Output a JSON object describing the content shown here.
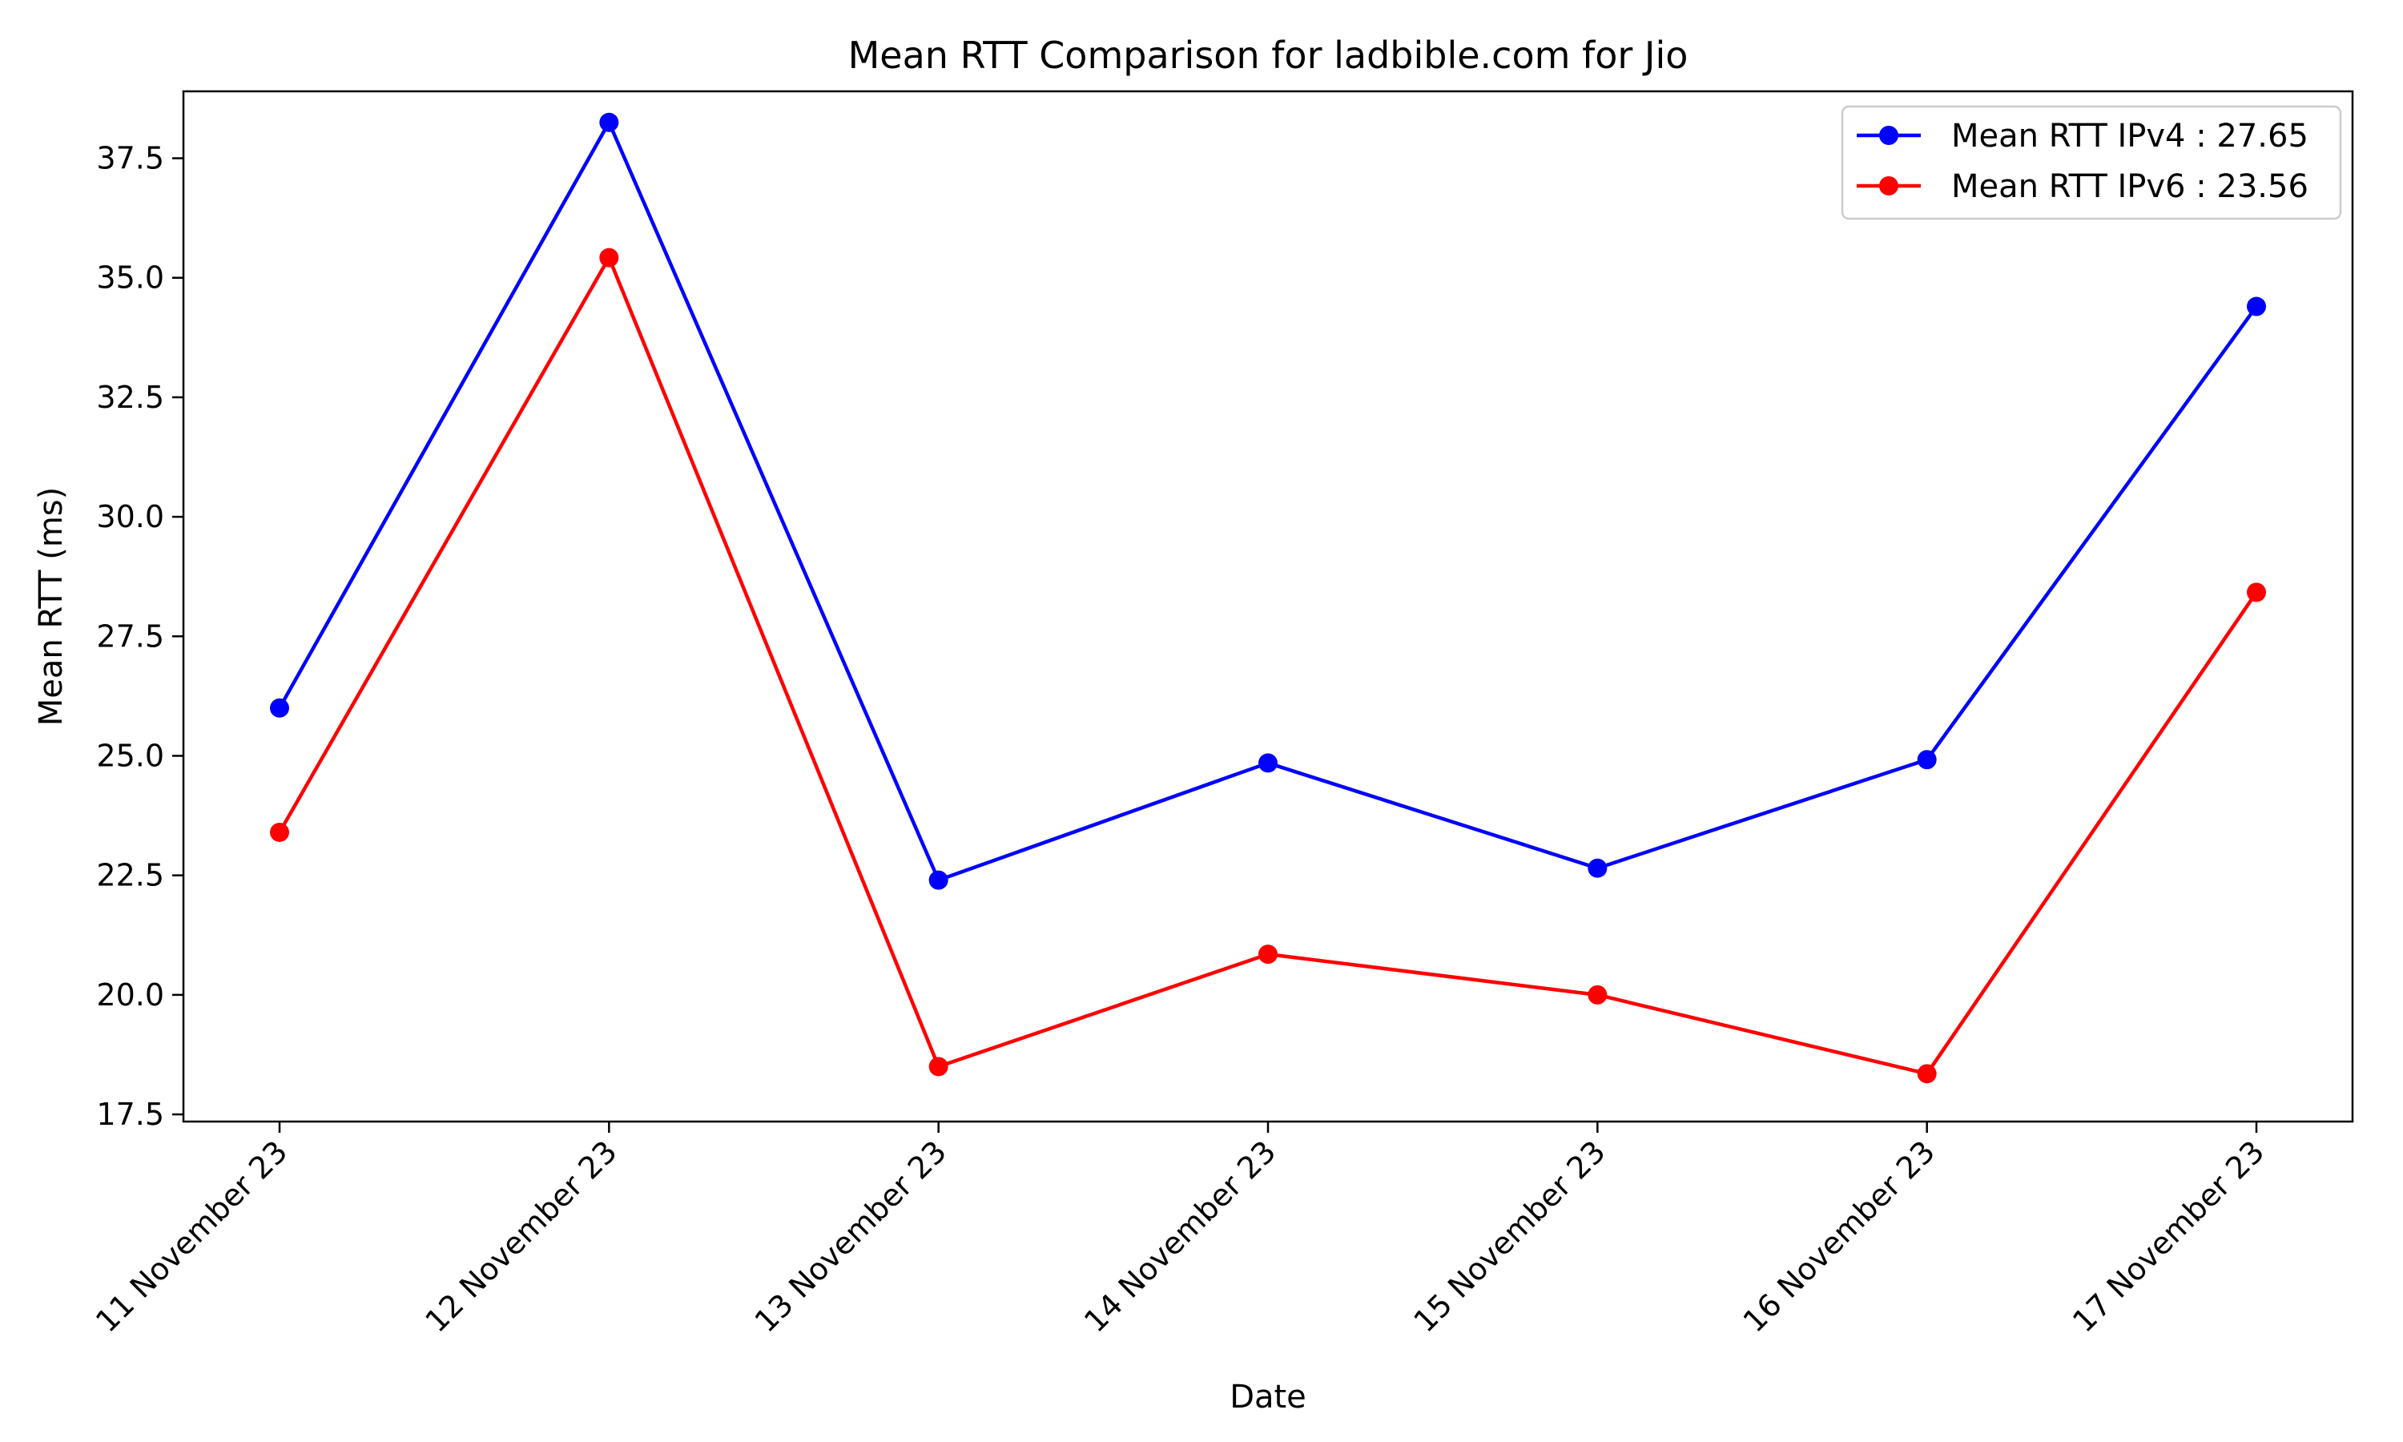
{
  "chart_data": {
    "type": "line",
    "title": "Mean RTT Comparison for ladbible.com for Jio",
    "xlabel": "Date",
    "ylabel": "Mean RTT (ms)",
    "categories": [
      "11 November 23",
      "12 November 23",
      "13 November 23",
      "14 November 23",
      "15 November 23",
      "16 November 23",
      "17 November 23"
    ],
    "ylim": [
      17.35,
      38.9
    ],
    "yticks": [
      17.5,
      20.0,
      22.5,
      25.0,
      27.5,
      30.0,
      32.5,
      35.0,
      37.5
    ],
    "ytick_labels": [
      "17.5",
      "20.0",
      "22.5",
      "25.0",
      "27.5",
      "30.0",
      "32.5",
      "35.0",
      "37.5"
    ],
    "grid": false,
    "legend_position": "top-right",
    "series": [
      {
        "name": "Mean RTT IPv4 : 27.65",
        "color": "#0000ff",
        "marker": "circle",
        "values": [
          26.0,
          38.25,
          22.4,
          24.85,
          22.65,
          24.92,
          34.4
        ]
      },
      {
        "name": "Mean RTT IPv6 : 23.56",
        "color": "#ff0000",
        "marker": "circle",
        "values": [
          23.4,
          35.42,
          18.5,
          20.85,
          20.0,
          18.35,
          28.42
        ]
      }
    ]
  }
}
